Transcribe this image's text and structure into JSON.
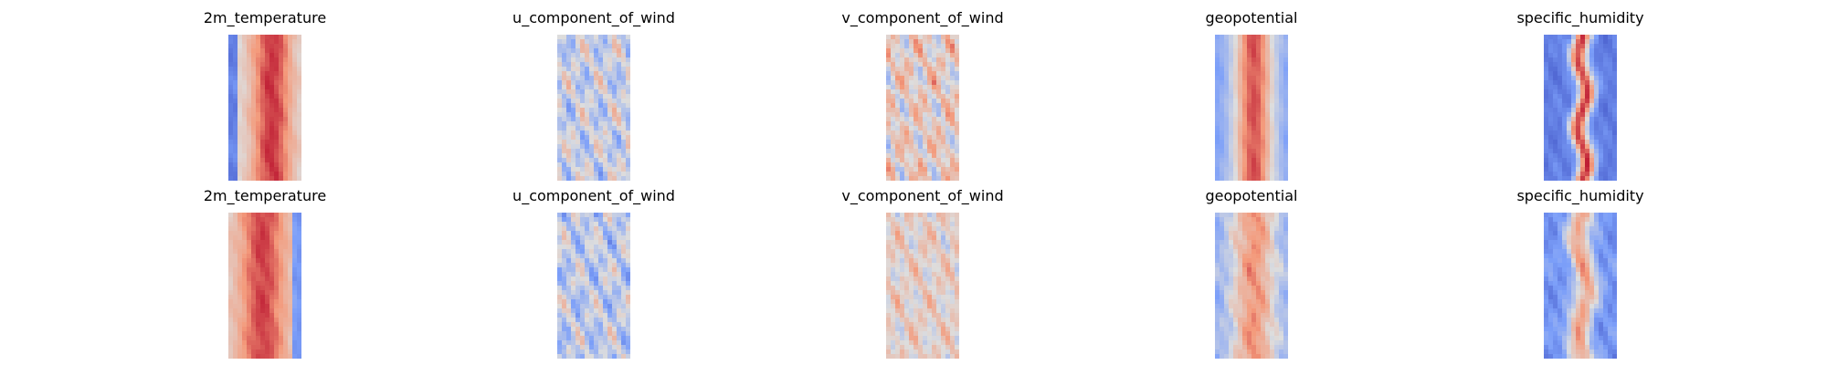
{
  "chart_data": {
    "type": "heatmap",
    "colormap": "coolwarm",
    "axes_visible": false,
    "grid": false,
    "legend": "none",
    "colors": {
      "cold": "#3b4cc0",
      "neutral": "#dddddd",
      "warm": "#b40426"
    },
    "rows": [
      {
        "panels": [
          {
            "title": "2m_temperature",
            "field": "temperature",
            "pattern": "warm band center, cold left edge"
          },
          {
            "title": "u_component_of_wind",
            "field": "u_wind",
            "pattern": "mixed, mostly neutral-blue"
          },
          {
            "title": "v_component_of_wind",
            "field": "v_wind",
            "pattern": "mixed eddies, light red"
          },
          {
            "title": "geopotential",
            "field": "geopotential",
            "pattern": "warm center band, blue edges"
          },
          {
            "title": "specific_humidity",
            "field": "humidity",
            "pattern": "narrow warm core, blue surroundings"
          }
        ]
      },
      {
        "panels": [
          {
            "title": "2m_temperature",
            "field": "temperature2",
            "pattern": "warm band, cold right edge"
          },
          {
            "title": "u_component_of_wind",
            "field": "u_wind2",
            "pattern": "mixed, mostly neutral-blue"
          },
          {
            "title": "v_component_of_wind",
            "field": "v_wind2",
            "pattern": "mixed eddies, pale"
          },
          {
            "title": "geopotential",
            "field": "geopotential2",
            "pattern": "warm center, blue edges"
          },
          {
            "title": "specific_humidity",
            "field": "humidity2",
            "pattern": "blue with warm streaks"
          }
        ]
      }
    ]
  }
}
